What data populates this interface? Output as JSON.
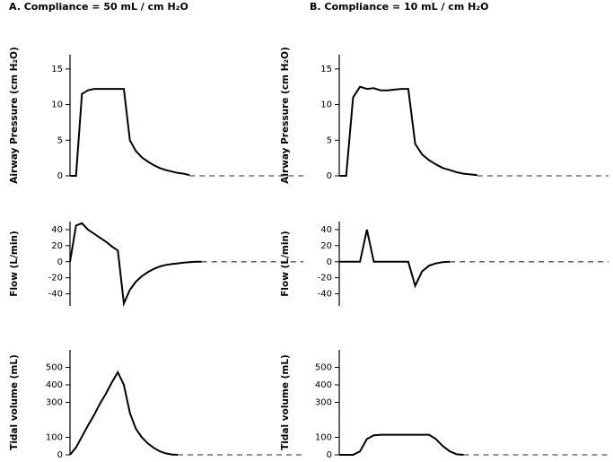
{
  "chart_data": [
    {
      "type": "line",
      "title": "A. Compliance = 50 mL / cm H₂O",
      "ylabel": "Airway Pressure (cm H₂O)",
      "ylim": [
        0,
        17
      ],
      "yticks": [
        0,
        5,
        10,
        15
      ],
      "categories": [
        null,
        null,
        null,
        null,
        null,
        null,
        null,
        null,
        null,
        null,
        null,
        null,
        null,
        null,
        null,
        null,
        null,
        null,
        null,
        null,
        null,
        null,
        null,
        null,
        null,
        null,
        null,
        null,
        null,
        null,
        null,
        null,
        null,
        null,
        null,
        null,
        null,
        null,
        null,
        null
      ],
      "series": [
        {
          "color": "#000000",
          "dash": false,
          "values": [
            0,
            0,
            11.5,
            12,
            12.2,
            12.2,
            12.2,
            12.2,
            12.2,
            12.2,
            5,
            3.5,
            2.6,
            2,
            1.5,
            1.1,
            0.8,
            0.6,
            0.4,
            0.3,
            0.1,
            null,
            null,
            null,
            null,
            null,
            null,
            null,
            null,
            null,
            null,
            null,
            null,
            null,
            null,
            null,
            null,
            null,
            null,
            null
          ]
        },
        {
          "color": "#555555",
          "dash": true,
          "values": [
            null,
            null,
            null,
            null,
            null,
            null,
            null,
            null,
            null,
            null,
            null,
            null,
            null,
            null,
            null,
            null,
            null,
            null,
            null,
            null,
            0,
            0,
            0,
            0,
            0,
            0,
            0,
            0,
            0,
            0,
            0,
            0,
            0,
            0,
            0,
            0,
            0,
            0,
            0,
            0
          ]
        }
      ]
    },
    {
      "type": "line",
      "title": "B. Compliance = 10 mL / cm H₂O",
      "ylabel": "Airway Pressure (cm H₂O)",
      "ylim": [
        0,
        17
      ],
      "yticks": [
        0,
        5,
        10,
        15
      ],
      "categories": [
        null,
        null,
        null,
        null,
        null,
        null,
        null,
        null,
        null,
        null,
        null,
        null,
        null,
        null,
        null,
        null,
        null,
        null,
        null,
        null,
        null,
        null,
        null,
        null,
        null,
        null,
        null,
        null,
        null,
        null,
        null,
        null,
        null,
        null,
        null,
        null,
        null,
        null,
        null,
        null
      ],
      "series": [
        {
          "color": "#000000",
          "dash": false,
          "values": [
            0,
            0,
            11,
            12.5,
            12.2,
            12.3,
            12,
            12,
            12.1,
            12.2,
            12.2,
            4.5,
            3,
            2.2,
            1.6,
            1.1,
            0.8,
            0.5,
            0.3,
            0.2,
            0.1,
            null,
            null,
            null,
            null,
            null,
            null,
            null,
            null,
            null,
            null,
            null,
            null,
            null,
            null,
            null,
            null,
            null,
            null,
            null
          ]
        },
        {
          "color": "#555555",
          "dash": true,
          "values": [
            null,
            null,
            null,
            null,
            null,
            null,
            null,
            null,
            null,
            null,
            null,
            null,
            null,
            null,
            null,
            null,
            null,
            null,
            null,
            null,
            0,
            0,
            0,
            0,
            0,
            0,
            0,
            0,
            0,
            0,
            0,
            0,
            0,
            0,
            0,
            0,
            0,
            0,
            0,
            0
          ]
        }
      ]
    },
    {
      "type": "line",
      "ylabel": "Flow  (L/min)",
      "ylim": [
        -55,
        50
      ],
      "yticks": [
        -40,
        -20,
        0,
        20,
        40
      ],
      "categories": [
        null,
        null,
        null,
        null,
        null,
        null,
        null,
        null,
        null,
        null,
        null,
        null,
        null,
        null,
        null,
        null,
        null,
        null,
        null,
        null,
        null,
        null,
        null,
        null,
        null,
        null,
        null,
        null,
        null,
        null,
        null,
        null,
        null,
        null,
        null,
        null,
        null,
        null,
        null,
        null
      ],
      "series": [
        {
          "color": "#000000",
          "dash": false,
          "values": [
            0,
            45,
            48,
            40,
            35,
            30,
            25,
            19,
            14,
            -52,
            -35,
            -25,
            -18,
            -13,
            -9,
            -6,
            -4,
            -3,
            -2,
            -1,
            -0.5,
            0,
            0,
            null,
            null,
            null,
            null,
            null,
            null,
            null,
            null,
            null,
            null,
            null,
            null,
            null,
            null,
            null,
            null,
            null
          ]
        },
        {
          "color": "#555555",
          "dash": true,
          "values": [
            null,
            null,
            null,
            null,
            null,
            null,
            null,
            null,
            null,
            null,
            null,
            null,
            null,
            null,
            null,
            null,
            null,
            null,
            null,
            null,
            null,
            null,
            0,
            0,
            0,
            0,
            0,
            0,
            0,
            0,
            0,
            0,
            0,
            0,
            0,
            0,
            0,
            0,
            0,
            0
          ]
        }
      ]
    },
    {
      "type": "line",
      "ylabel": "Flow  (L/min)",
      "ylim": [
        -55,
        50
      ],
      "yticks": [
        -40,
        -20,
        0,
        20,
        40
      ],
      "categories": [
        null,
        null,
        null,
        null,
        null,
        null,
        null,
        null,
        null,
        null,
        null,
        null,
        null,
        null,
        null,
        null,
        null,
        null,
        null,
        null,
        null,
        null,
        null,
        null,
        null,
        null,
        null,
        null,
        null,
        null,
        null,
        null,
        null,
        null,
        null,
        null,
        null,
        null,
        null,
        null
      ],
      "series": [
        {
          "color": "#000000",
          "dash": false,
          "values": [
            0,
            0,
            0,
            0,
            40,
            0,
            0,
            0,
            0,
            0,
            0,
            -30,
            -12,
            -5,
            -2,
            -0.5,
            0,
            null,
            null,
            null,
            null,
            null,
            null,
            null,
            null,
            null,
            null,
            null,
            null,
            null,
            null,
            null,
            null,
            null,
            null,
            null,
            null,
            null,
            null,
            null
          ]
        },
        {
          "color": "#555555",
          "dash": true,
          "values": [
            null,
            null,
            null,
            null,
            null,
            null,
            null,
            null,
            null,
            null,
            null,
            null,
            null,
            null,
            null,
            null,
            0,
            0,
            0,
            0,
            0,
            0,
            0,
            0,
            0,
            0,
            0,
            0,
            0,
            0,
            0,
            0,
            0,
            0,
            0,
            0,
            0,
            0,
            0,
            0
          ]
        }
      ]
    },
    {
      "type": "line",
      "ylabel": "Tidal volume  (mL)",
      "ylim": [
        0,
        600
      ],
      "yticks": [
        0,
        100,
        300,
        400,
        500
      ],
      "categories": [
        null,
        null,
        null,
        null,
        null,
        null,
        null,
        null,
        null,
        null,
        null,
        null,
        null,
        null,
        null,
        null,
        null,
        null,
        null,
        null,
        null,
        null,
        null,
        null,
        null,
        null,
        null,
        null,
        null,
        null,
        null,
        null,
        null,
        null,
        null,
        null,
        null,
        null,
        null,
        null
      ],
      "series": [
        {
          "color": "#000000",
          "dash": false,
          "values": [
            0,
            42,
            104,
            167,
            226,
            292,
            349,
            415,
            472,
            400,
            240,
            150,
            100,
            65,
            40,
            20,
            8,
            2,
            0,
            null,
            null,
            null,
            null,
            null,
            null,
            null,
            null,
            null,
            null,
            null,
            null,
            null,
            null,
            null,
            null,
            null,
            null,
            null,
            null,
            null
          ]
        },
        {
          "color": "#555555",
          "dash": true,
          "values": [
            null,
            null,
            null,
            null,
            null,
            null,
            null,
            null,
            null,
            null,
            null,
            null,
            null,
            null,
            null,
            null,
            null,
            null,
            0,
            0,
            0,
            0,
            0,
            0,
            0,
            0,
            0,
            0,
            0,
            0,
            0,
            0,
            0,
            0,
            0,
            0,
            0,
            0,
            0,
            0
          ]
        }
      ]
    },
    {
      "type": "line",
      "ylabel": "Tidal volume  (mL)",
      "ylim": [
        0,
        600
      ],
      "yticks": [
        0,
        100,
        300,
        400,
        500
      ],
      "categories": [
        null,
        null,
        null,
        null,
        null,
        null,
        null,
        null,
        null,
        null,
        null,
        null,
        null,
        null,
        null,
        null,
        null,
        null,
        null,
        null,
        null,
        null,
        null,
        null,
        null,
        null,
        null,
        null,
        null,
        null,
        null,
        null,
        null,
        null,
        null,
        null,
        null,
        null,
        null,
        null
      ],
      "series": [
        {
          "color": "#000000",
          "dash": false,
          "values": [
            0,
            0,
            0,
            20,
            90,
            112,
            115,
            115,
            115,
            115,
            115,
            115,
            115,
            115,
            90,
            50,
            20,
            3,
            0,
            null,
            null,
            null,
            null,
            null,
            null,
            null,
            null,
            null,
            null,
            null,
            null,
            null,
            null,
            null,
            null,
            null,
            null,
            null,
            null,
            null
          ]
        },
        {
          "color": "#555555",
          "dash": true,
          "values": [
            null,
            null,
            null,
            null,
            null,
            null,
            null,
            null,
            null,
            null,
            null,
            null,
            null,
            null,
            null,
            null,
            null,
            null,
            0,
            0,
            0,
            0,
            0,
            0,
            0,
            0,
            0,
            0,
            0,
            0,
            0,
            0,
            0,
            0,
            0,
            0,
            0,
            0,
            0,
            0
          ]
        }
      ]
    }
  ]
}
